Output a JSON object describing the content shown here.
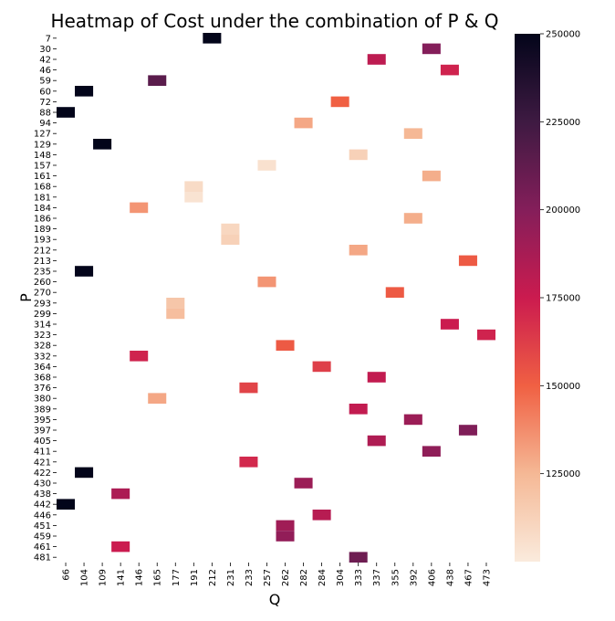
{
  "chart_data": {
    "type": "heatmap",
    "title": "Heatmap of Cost under the combination of P & Q",
    "xlabel": "Q",
    "ylabel": "P",
    "x_categories": [
      "66",
      "104",
      "109",
      "141",
      "146",
      "165",
      "177",
      "191",
      "212",
      "231",
      "233",
      "257",
      "262",
      "282",
      "284",
      "304",
      "333",
      "337",
      "355",
      "392",
      "406",
      "438",
      "467",
      "473"
    ],
    "y_categories": [
      "7",
      "30",
      "42",
      "46",
      "59",
      "60",
      "72",
      "88",
      "94",
      "127",
      "129",
      "148",
      "157",
      "161",
      "168",
      "181",
      "184",
      "186",
      "189",
      "193",
      "212",
      "213",
      "235",
      "260",
      "270",
      "293",
      "299",
      "314",
      "323",
      "328",
      "332",
      "364",
      "368",
      "376",
      "380",
      "389",
      "395",
      "397",
      "405",
      "411",
      "421",
      "422",
      "430",
      "438",
      "442",
      "446",
      "451",
      "459",
      "461",
      "481"
    ],
    "cells": [
      {
        "p": "7",
        "q": "212",
        "cost": 250000
      },
      {
        "p": "30",
        "q": "406",
        "cost": 200000
      },
      {
        "p": "42",
        "q": "337",
        "cost": 180000
      },
      {
        "p": "46",
        "q": "438",
        "cost": 172000
      },
      {
        "p": "59",
        "q": "165",
        "cost": 215000
      },
      {
        "p": "60",
        "q": "104",
        "cost": 250000
      },
      {
        "p": "72",
        "q": "304",
        "cost": 150000
      },
      {
        "p": "88",
        "q": "66",
        "cost": 250000
      },
      {
        "p": "94",
        "q": "282",
        "cost": 130000
      },
      {
        "p": "127",
        "q": "392",
        "cost": 125000
      },
      {
        "p": "129",
        "q": "109",
        "cost": 250000
      },
      {
        "p": "148",
        "q": "333",
        "cost": 113000
      },
      {
        "p": "157",
        "q": "257",
        "cost": 105000
      },
      {
        "p": "161",
        "q": "406",
        "cost": 128000
      },
      {
        "p": "168",
        "q": "191",
        "cost": 108000
      },
      {
        "p": "181",
        "q": "191",
        "cost": 104000
      },
      {
        "p": "184",
        "q": "146",
        "cost": 135000
      },
      {
        "p": "186",
        "q": "392",
        "cost": 128000
      },
      {
        "p": "189",
        "q": "231",
        "cost": 110000
      },
      {
        "p": "193",
        "q": "231",
        "cost": 113000
      },
      {
        "p": "212",
        "q": "333",
        "cost": 130000
      },
      {
        "p": "213",
        "q": "467",
        "cost": 152000
      },
      {
        "p": "235",
        "q": "104",
        "cost": 250000
      },
      {
        "p": "260",
        "q": "257",
        "cost": 135000
      },
      {
        "p": "270",
        "q": "355",
        "cost": 152000
      },
      {
        "p": "293",
        "q": "177",
        "cost": 118000
      },
      {
        "p": "299",
        "q": "177",
        "cost": 122000
      },
      {
        "p": "314",
        "q": "438",
        "cost": 175000
      },
      {
        "p": "323",
        "q": "473",
        "cost": 172000
      },
      {
        "p": "328",
        "q": "262",
        "cost": 152000
      },
      {
        "p": "332",
        "q": "146",
        "cost": 172000
      },
      {
        "p": "364",
        "q": "284",
        "cost": 162000
      },
      {
        "p": "368",
        "q": "337",
        "cost": 178000
      },
      {
        "p": "376",
        "q": "233",
        "cost": 160000
      },
      {
        "p": "380",
        "q": "165",
        "cost": 130000
      },
      {
        "p": "389",
        "q": "333",
        "cost": 178000
      },
      {
        "p": "395",
        "q": "392",
        "cost": 192000
      },
      {
        "p": "397",
        "q": "467",
        "cost": 202000
      },
      {
        "p": "405",
        "q": "337",
        "cost": 185000
      },
      {
        "p": "411",
        "q": "406",
        "cost": 196000
      },
      {
        "p": "421",
        "q": "233",
        "cost": 170000
      },
      {
        "p": "422",
        "q": "104",
        "cost": 250000
      },
      {
        "p": "430",
        "q": "282",
        "cost": 192000
      },
      {
        "p": "438",
        "q": "141",
        "cost": 186000
      },
      {
        "p": "442",
        "q": "66",
        "cost": 250000
      },
      {
        "p": "446",
        "q": "284",
        "cost": 182000
      },
      {
        "p": "451",
        "q": "262",
        "cost": 190000
      },
      {
        "p": "459",
        "q": "262",
        "cost": 195000
      },
      {
        "p": "461",
        "q": "141",
        "cost": 175000
      },
      {
        "p": "481",
        "q": "333",
        "cost": 208000
      }
    ],
    "colorbar": {
      "ticks": [
        "250000",
        "225000",
        "200000",
        "175000",
        "150000",
        "125000"
      ],
      "range": [
        100000,
        250000
      ]
    }
  }
}
